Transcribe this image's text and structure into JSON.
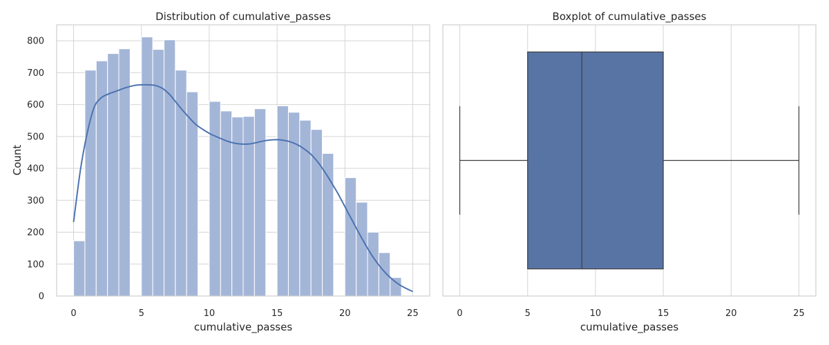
{
  "chart_data": [
    {
      "type": "histogram",
      "title": "Distribution of cumulative_passes",
      "xlabel": "cumulative_passes",
      "ylabel": "Count",
      "xlim": [
        -1.25,
        26.25
      ],
      "ylim": [
        0,
        850
      ],
      "xticks": [
        0,
        5,
        10,
        15,
        20,
        25
      ],
      "yticks": [
        0,
        100,
        200,
        300,
        400,
        500,
        600,
        700,
        800
      ],
      "bin_width": 0.8333,
      "bins": [
        {
          "start": 0,
          "count": 173
        },
        {
          "start": 0.8333,
          "count": 708
        },
        {
          "start": 1.6667,
          "count": 737
        },
        {
          "start": 2.5,
          "count": 760
        },
        {
          "start": 3.3333,
          "count": 775
        },
        {
          "start": 4.1667,
          "count": 0
        },
        {
          "start": 5,
          "count": 812
        },
        {
          "start": 5.8333,
          "count": 773
        },
        {
          "start": 6.6667,
          "count": 803
        },
        {
          "start": 7.5,
          "count": 708
        },
        {
          "start": 8.3333,
          "count": 640
        },
        {
          "start": 9.1667,
          "count": 0
        },
        {
          "start": 10,
          "count": 610
        },
        {
          "start": 10.8333,
          "count": 580
        },
        {
          "start": 11.6667,
          "count": 561
        },
        {
          "start": 12.5,
          "count": 563
        },
        {
          "start": 13.3333,
          "count": 587
        },
        {
          "start": 14.1667,
          "count": 0
        },
        {
          "start": 15,
          "count": 596
        },
        {
          "start": 15.8333,
          "count": 576
        },
        {
          "start": 16.6667,
          "count": 551
        },
        {
          "start": 17.5,
          "count": 522
        },
        {
          "start": 18.3333,
          "count": 447
        },
        {
          "start": 19.1667,
          "count": 0
        },
        {
          "start": 20,
          "count": 371
        },
        {
          "start": 20.8333,
          "count": 294
        },
        {
          "start": 21.6667,
          "count": 200
        },
        {
          "start": 22.5,
          "count": 136
        },
        {
          "start": 23.3333,
          "count": 58
        }
      ],
      "kde": {
        "x": [
          0,
          0.5,
          1,
          1.5,
          2,
          2.5,
          3,
          3.5,
          4,
          4.5,
          5,
          5.5,
          6,
          6.5,
          7,
          7.5,
          8,
          8.5,
          9,
          9.5,
          10,
          10.5,
          11,
          11.5,
          12,
          12.5,
          13,
          13.5,
          14,
          14.5,
          15,
          15.5,
          16,
          16.5,
          17,
          17.5,
          18,
          18.5,
          19,
          19.5,
          20,
          20.5,
          21,
          21.5,
          22,
          22.5,
          23,
          23.5,
          24,
          24.5,
          25
        ],
        "y": [
          232,
          395,
          510,
          590,
          620,
          632,
          640,
          648,
          655,
          660,
          662,
          662,
          660,
          652,
          635,
          610,
          584,
          560,
          538,
          523,
          510,
          500,
          491,
          483,
          478,
          476,
          477,
          481,
          486,
          489,
          490,
          488,
          483,
          474,
          461,
          444,
          420,
          390,
          356,
          320,
          280,
          240,
          200,
          162,
          127,
          97,
          72,
          52,
          36,
          24,
          14
        ]
      },
      "bar_color": "#a4b6d8",
      "line_color": "#4c72b0"
    },
    {
      "type": "boxplot",
      "title": "Boxplot of cumulative_passes",
      "xlabel": "cumulative_passes",
      "xlim": [
        -1.25,
        26.25
      ],
      "xticks": [
        0,
        5,
        10,
        15,
        20,
        25
      ],
      "min": 0,
      "q1": 5,
      "median": 9,
      "q3": 15,
      "max": 25,
      "box_color": "#5874a5",
      "line_color": "#3d3d3d"
    }
  ]
}
